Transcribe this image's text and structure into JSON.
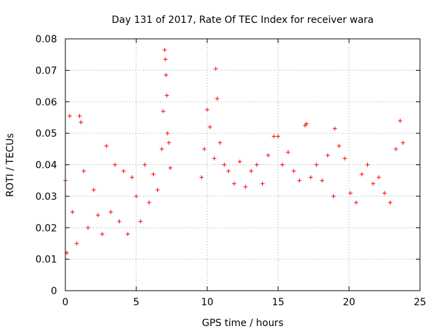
{
  "chart_data": {
    "type": "scatter",
    "title": "Day 131 of 2017, Rate Of TEC Index for receiver wara",
    "xlabel": "GPS time / hours",
    "ylabel": "ROTI / TECUs",
    "xlim": [
      0,
      25
    ],
    "ylim": [
      0,
      0.08
    ],
    "x_ticks": [
      0,
      5,
      10,
      15,
      20,
      25
    ],
    "y_ticks": [
      0,
      0.01,
      0.02,
      0.03,
      0.04,
      0.05,
      0.06,
      0.07,
      0.08
    ],
    "x_tick_labels": [
      "0",
      "5",
      "10",
      "15",
      "20",
      "25"
    ],
    "y_tick_labels": [
      "0",
      "0.01",
      "0.02",
      "0.03",
      "0.04",
      "0.05",
      "0.06",
      "0.07",
      "0.08"
    ],
    "grid": true,
    "marker": "plus",
    "color": "#ff0000",
    "series": [
      {
        "x": [
          0.0,
          0.1,
          0.3,
          0.5,
          0.8,
          1.0,
          1.1,
          1.3,
          1.6,
          2.0,
          2.3,
          2.6,
          2.9,
          3.2,
          3.5,
          3.8,
          4.1,
          4.4,
          4.7,
          5.0,
          5.3,
          5.6,
          5.9,
          6.2,
          6.5,
          6.8,
          6.9,
          7.0,
          7.05,
          7.1,
          7.15,
          7.2,
          7.3,
          7.4,
          9.6,
          9.8,
          10.0,
          10.2,
          10.5,
          10.6,
          10.7,
          10.9,
          11.2,
          11.5,
          11.9,
          12.3,
          12.7,
          13.1,
          13.5,
          13.9,
          14.3,
          14.7,
          15.0,
          15.3,
          15.7,
          16.1,
          16.5,
          16.9,
          17.0,
          17.3,
          17.7,
          18.1,
          18.5,
          18.9,
          19.0,
          19.3,
          19.7,
          20.1,
          20.5,
          20.9,
          21.3,
          21.7,
          22.1,
          22.5,
          22.9,
          23.3,
          23.6,
          23.8
        ],
        "y": [
          0.035,
          0.012,
          0.0555,
          0.025,
          0.015,
          0.0555,
          0.0535,
          0.038,
          0.02,
          0.032,
          0.024,
          0.018,
          0.046,
          0.025,
          0.04,
          0.022,
          0.038,
          0.018,
          0.036,
          0.03,
          0.022,
          0.04,
          0.028,
          0.037,
          0.032,
          0.045,
          0.057,
          0.0765,
          0.0735,
          0.0685,
          0.062,
          0.05,
          0.047,
          0.039,
          0.036,
          0.045,
          0.0575,
          0.052,
          0.042,
          0.0705,
          0.061,
          0.047,
          0.04,
          0.038,
          0.034,
          0.041,
          0.033,
          0.038,
          0.04,
          0.034,
          0.043,
          0.049,
          0.049,
          0.04,
          0.044,
          0.038,
          0.035,
          0.0525,
          0.053,
          0.036,
          0.04,
          0.035,
          0.043,
          0.03,
          0.0515,
          0.046,
          0.042,
          0.031,
          0.028,
          0.037,
          0.04,
          0.034,
          0.036,
          0.031,
          0.028,
          0.045,
          0.054,
          0.047
        ]
      }
    ]
  }
}
